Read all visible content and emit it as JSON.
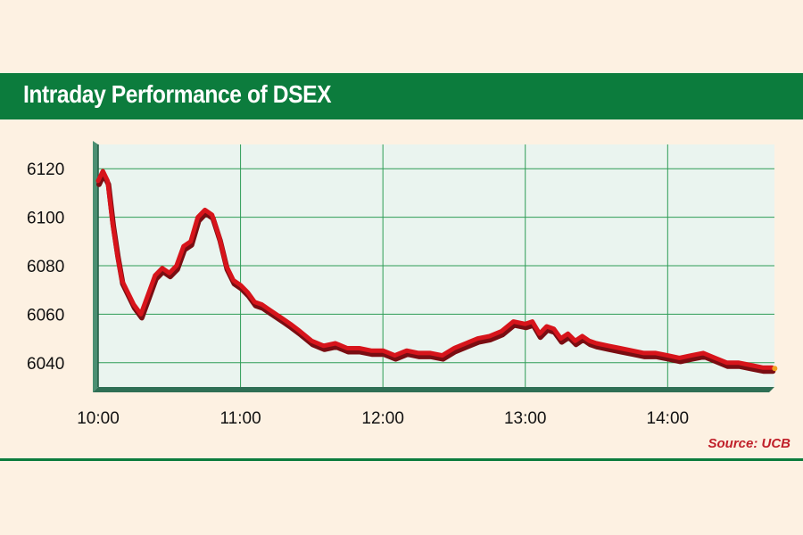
{
  "chart_data": {
    "type": "line",
    "title": "Intraday Performance of DSEX",
    "source": "Source: UCB",
    "xlabel": "",
    "ylabel": "",
    "x_ticks": [
      "10:00",
      "11:00",
      "12:00",
      "13:00",
      "14:00"
    ],
    "y_ticks": [
      6040,
      6060,
      6080,
      6100,
      6120
    ],
    "xlim": [
      "10:00",
      "14:45"
    ],
    "ylim": [
      6030,
      6130
    ],
    "grid": true,
    "colors": {
      "line": "#d7141b",
      "line_shadow": "#7a0d12",
      "grid": "#2e9c56",
      "title_bg": "#0c7c3d",
      "plot_bg": "#eaf4ef"
    },
    "series": [
      {
        "x": [
          "10:00",
          "10:02",
          "10:04",
          "10:06",
          "10:08",
          "10:10",
          "10:12",
          "10:15",
          "10:18",
          "10:21",
          "10:24",
          "10:27",
          "10:30",
          "10:33",
          "10:36",
          "10:39",
          "10:42",
          "10:45",
          "10:48",
          "10:51",
          "10:54",
          "10:57",
          "11:00",
          "11:03",
          "11:06",
          "11:09",
          "11:12",
          "11:15",
          "11:18",
          "11:21",
          "11:25",
          "11:30",
          "11:35",
          "11:40",
          "11:45",
          "11:50",
          "11:55",
          "12:00",
          "12:05",
          "12:10",
          "12:15",
          "12:20",
          "12:25",
          "12:30",
          "12:35",
          "12:40",
          "12:45",
          "12:50",
          "12:55",
          "13:00",
          "13:03",
          "13:06",
          "13:09",
          "13:12",
          "13:15",
          "13:18",
          "13:21",
          "13:24",
          "13:27",
          "13:30",
          "13:35",
          "13:40",
          "13:45",
          "13:50",
          "13:55",
          "14:00",
          "14:05",
          "14:10",
          "14:15",
          "14:20",
          "14:25",
          "14:30",
          "14:35",
          "14:40",
          "14:44"
        ],
        "y": [
          6115,
          6119,
          6115,
          6098,
          6085,
          6074,
          6070,
          6064,
          6060,
          6068,
          6076,
          6079,
          6077,
          6080,
          6088,
          6090,
          6100,
          6103,
          6101,
          6092,
          6080,
          6074,
          6072,
          6069,
          6065,
          6064,
          6062,
          6060,
          6058,
          6056,
          6053,
          6049,
          6047,
          6048,
          6046,
          6046,
          6045,
          6045,
          6043,
          6045,
          6044,
          6044,
          6043,
          6046,
          6048,
          6050,
          6051,
          6053,
          6057,
          6056,
          6057,
          6052,
          6055,
          6054,
          6050,
          6052,
          6049,
          6051,
          6049,
          6048,
          6047,
          6046,
          6045,
          6044,
          6044,
          6043,
          6042,
          6043,
          6044,
          6042,
          6040,
          6040,
          6039,
          6038,
          6038
        ]
      }
    ]
  }
}
